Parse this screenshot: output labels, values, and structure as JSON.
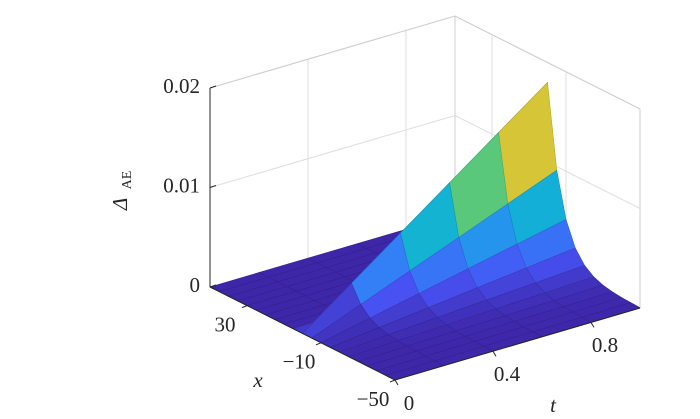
{
  "chart_data": {
    "type": "surface",
    "colormap": "parula",
    "xlabel": "x",
    "tlabel": "t",
    "zlabel": "Δ",
    "zlabel_subscript": "AE",
    "xlim": [
      -50,
      50
    ],
    "tlim": [
      0,
      1
    ],
    "zlim": [
      0,
      0.02
    ],
    "xticks": [
      {
        "value": -50,
        "label": "−50"
      },
      {
        "value": -10,
        "label": "−10"
      },
      30
    ],
    "tticks": [
      0,
      0.4,
      0.8
    ],
    "zticks": [
      0,
      0.01,
      0.02
    ],
    "grid": true,
    "x": [
      -50,
      -45,
      -40,
      -35,
      -30,
      -25,
      -20,
      -15,
      -10,
      -5,
      0,
      5,
      10,
      15,
      20,
      25,
      30,
      35,
      40,
      45,
      50
    ],
    "t": [
      0,
      0.2,
      0.4,
      0.6,
      0.8,
      1
    ],
    "z": [
      [
        0,
        0,
        0,
        0,
        0,
        0,
        0,
        0,
        0,
        0,
        0,
        0,
        0,
        0,
        0,
        0,
        0,
        0,
        0,
        0,
        0
      ],
      [
        1e-05,
        1e-05,
        2e-05,
        5e-05,
        8e-05,
        0.00016,
        0.0003,
        0.00055,
        0.00103,
        0.00193,
        0.0036,
        0.00018,
        0,
        0,
        0,
        0,
        0,
        0,
        0,
        0,
        0
      ],
      [
        1e-05,
        3e-05,
        5e-05,
        9e-05,
        0.00017,
        0.00032,
        0.00059,
        0.0011,
        0.00206,
        0.00386,
        0.0072,
        0.00036,
        0,
        0,
        0,
        0,
        0,
        0,
        0,
        0,
        0
      ],
      [
        2e-05,
        4e-05,
        7e-05,
        0.00014,
        0.00025,
        0.00047,
        0.00089,
        0.00166,
        0.0031,
        0.00578,
        0.0108,
        0.00054,
        0,
        0,
        0,
        0,
        0,
        0,
        0,
        0,
        0
      ],
      [
        3e-05,
        5e-05,
        0.0001,
        0.00018,
        0.00034,
        0.00063,
        0.00118,
        0.00221,
        0.00413,
        0.00771,
        0.0144,
        0.00072,
        0,
        0,
        0,
        0,
        0,
        0,
        0,
        0,
        0
      ],
      [
        3e-05,
        7e-05,
        0.00012,
        0.00023,
        0.00042,
        0.00079,
        0.00148,
        0.00276,
        0.00516,
        0.00964,
        0.018,
        0.0009,
        0,
        0,
        0,
        0,
        0,
        0,
        0,
        0,
        0
      ]
    ]
  }
}
